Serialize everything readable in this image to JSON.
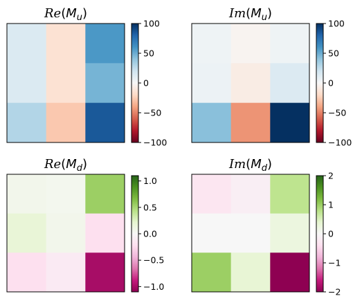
{
  "chart_data": [
    {
      "type": "heatmap",
      "title_script": "Re",
      "title_main": "M",
      "title_sub": "u",
      "grid": false,
      "colormap": "RdBu",
      "vmin": -100,
      "vmax": 100,
      "colorbar_ticks": [
        100,
        50,
        0,
        -50,
        -100
      ],
      "values": [
        [
          15,
          -15,
          58
        ],
        [
          15,
          -15,
          47
        ],
        [
          30,
          -27,
          85
        ]
      ]
    },
    {
      "type": "heatmap",
      "title_script": "Im",
      "title_main": "M",
      "title_sub": "u",
      "grid": false,
      "colormap": "RdBu",
      "vmin": -100,
      "vmax": 100,
      "colorbar_ticks": [
        100,
        50,
        0,
        -50,
        -100
      ],
      "values": [
        [
          5,
          -3,
          5
        ],
        [
          6,
          -8,
          14
        ],
        [
          42,
          -45,
          100
        ]
      ]
    },
    {
      "type": "heatmap",
      "title_script": "Re",
      "title_main": "M",
      "title_sub": "d",
      "grid": false,
      "colormap": "PiYG",
      "vmin": -1.1,
      "vmax": 1.1,
      "colorbar_ticks": [
        "1.0",
        "0.5",
        "0.0",
        "−0.5",
        "−1.0"
      ],
      "colorbar_tick_values": [
        1.0,
        0.5,
        0.0,
        -0.5,
        -1.0
      ],
      "values": [
        [
          0.07,
          0.05,
          0.55
        ],
        [
          0.18,
          0.07,
          -0.22
        ],
        [
          -0.22,
          -0.12,
          -1.0
        ]
      ]
    },
    {
      "type": "heatmap",
      "title_script": "Im",
      "title_main": "M",
      "title_sub": "d",
      "grid": false,
      "colormap": "PiYG",
      "vmin": -2,
      "vmax": 2,
      "colorbar_ticks": [
        "2",
        "1",
        "0",
        "−1",
        "−2"
      ],
      "colorbar_tick_values": [
        2,
        1,
        0,
        -1,
        -2
      ],
      "values": [
        [
          -0.3,
          -0.15,
          0.75
        ],
        [
          0.0,
          0.0,
          0.25
        ],
        [
          1.0,
          0.35,
          -2.0
        ]
      ]
    }
  ]
}
